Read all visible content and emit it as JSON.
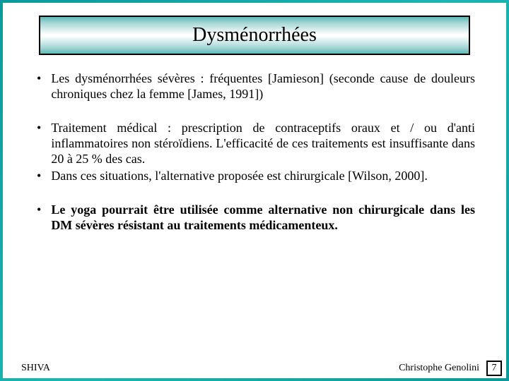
{
  "slide": {
    "background_gradient": [
      "#0b9a99",
      "#1cb5b3",
      "#0b9a99"
    ],
    "content_bg": "#ffffff",
    "title_border_color": "#000000",
    "title_gradient": [
      "#5fb9b7",
      "#a9d9d8",
      "#ffffff",
      "#a9d9d8",
      "#5fb9b7"
    ]
  },
  "title": "Dysménorrhées",
  "bullets": [
    {
      "text": "Les dysménorrhées sévères : fréquentes [Jamieson] (seconde cause de douleurs chroniques chez la femme [James, 1991])",
      "bold": false,
      "group": 0
    },
    {
      "text": "Traitement médical : prescription de contraceptifs oraux et / ou d'anti inflammatoires non stéroïdiens. L'efficacité de ces traitements est insuffisante dans 20 à 25 % des cas.",
      "bold": false,
      "group": 1
    },
    {
      "text": "Dans ces situations, l'alternative proposée est chirurgicale [Wilson, 2000].",
      "bold": false,
      "group": 1
    },
    {
      "text": "Le yoga pourrait être utilisée comme alternative non chirurgicale dans les DM sévères résistant au traitements médicamenteux.",
      "bold": true,
      "group": 2
    }
  ],
  "footer": {
    "left": "SHIVA",
    "right": "Christophe Genolini",
    "page": "7"
  },
  "typography": {
    "title_fontsize": 28,
    "body_fontsize": 18,
    "footer_fontsize": 14,
    "font_family": "Times New Roman"
  }
}
